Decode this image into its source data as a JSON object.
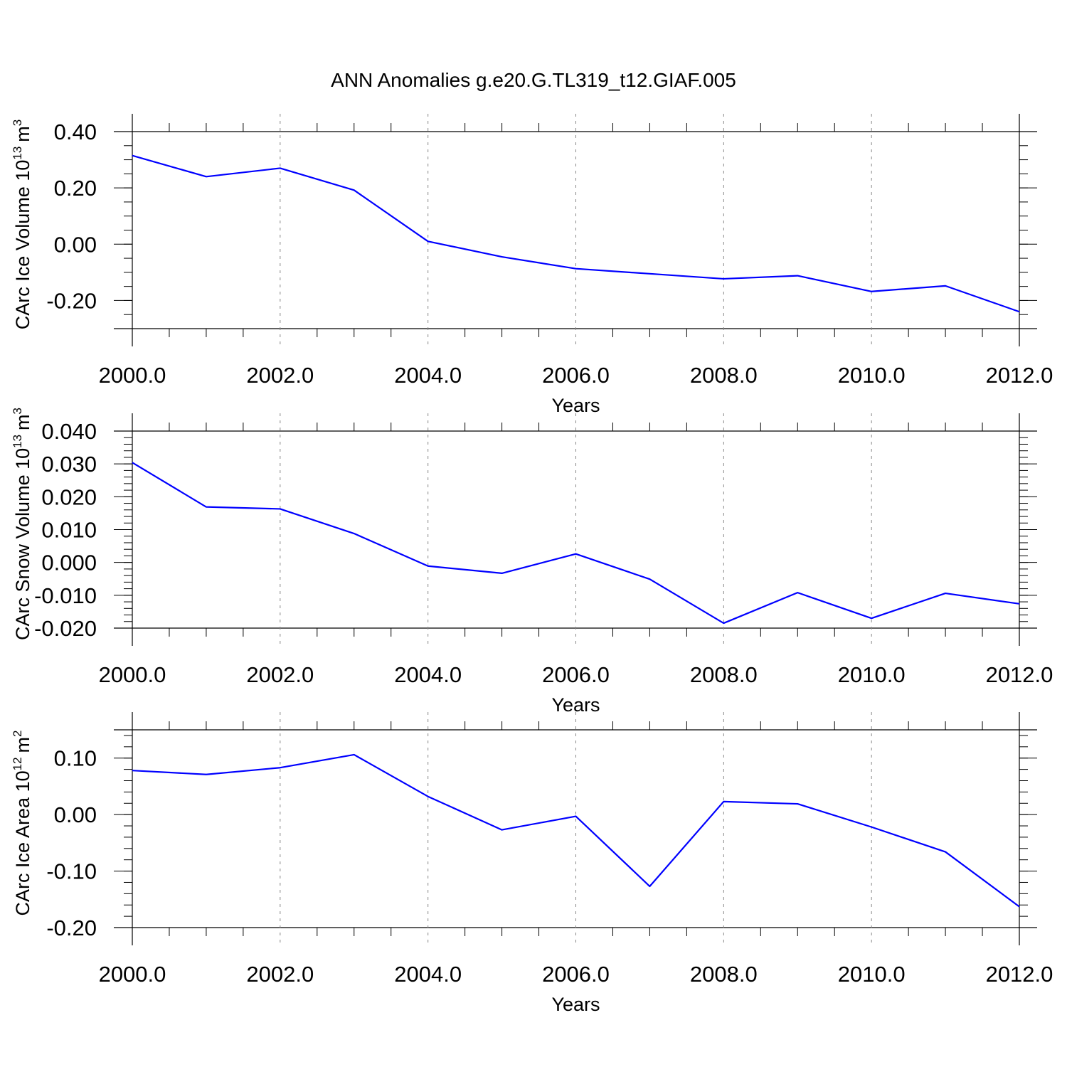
{
  "figure_title": "ANN Anomalies g.e20.G.TL319_t12.GIAF.005",
  "colors": {
    "line": "#0000ff",
    "axis": "#000000",
    "grid": "#888888",
    "background": "#ffffff"
  },
  "chart_data": [
    {
      "type": "line",
      "title": "ANN Anomalies g.e20.G.TL319_t12.GIAF.005",
      "xlabel": "Years",
      "ylabel": {
        "text": "CArc Ice Volume 10",
        "exponent": "13",
        "unit": "m",
        "unit_exponent": "3"
      },
      "x": [
        2000,
        2001,
        2002,
        2003,
        2004,
        2005,
        2006,
        2007,
        2008,
        2009,
        2010,
        2011,
        2012
      ],
      "xlim": [
        2000,
        2012
      ],
      "xticks": [
        2000,
        2002,
        2004,
        2006,
        2008,
        2010,
        2012
      ],
      "xtick_labels": [
        "2000.0",
        "2002.0",
        "2004.0",
        "2006.0",
        "2008.0",
        "2010.0",
        "2012.0"
      ],
      "ylim": [
        -0.3,
        0.4
      ],
      "yticks": [
        0.4,
        0.2,
        0.0,
        -0.2
      ],
      "ytick_labels": [
        "0.40",
        "0.20",
        "0.00",
        "-0.20"
      ],
      "yminor_step": 0.05,
      "grid": "dashed vertical at major x ticks",
      "series": [
        {
          "name": "CArc Ice Volume",
          "values": [
            0.315,
            0.24,
            0.27,
            0.192,
            0.01,
            -0.045,
            -0.087,
            -0.105,
            -0.123,
            -0.112,
            -0.168,
            -0.148,
            -0.24
          ]
        }
      ]
    },
    {
      "type": "line",
      "title": "",
      "xlabel": "Years",
      "ylabel": {
        "text": "CArc Snow Volume 10",
        "exponent": "13",
        "unit": "m",
        "unit_exponent": "3"
      },
      "x": [
        2000,
        2001,
        2002,
        2003,
        2004,
        2005,
        2006,
        2007,
        2008,
        2009,
        2010,
        2011,
        2012
      ],
      "xlim": [
        2000,
        2012
      ],
      "xticks": [
        2000,
        2002,
        2004,
        2006,
        2008,
        2010,
        2012
      ],
      "xtick_labels": [
        "2000.0",
        "2002.0",
        "2004.0",
        "2006.0",
        "2008.0",
        "2010.0",
        "2012.0"
      ],
      "ylim": [
        -0.02,
        0.04
      ],
      "yticks": [
        0.04,
        0.03,
        0.02,
        0.01,
        0.0,
        -0.01,
        -0.02
      ],
      "ytick_labels": [
        "0.040",
        "0.030",
        "0.020",
        "0.010",
        "0.000",
        "-0.010",
        "-0.020"
      ],
      "yminor_step": 0.002,
      "grid": "dashed vertical at major x ticks",
      "series": [
        {
          "name": "CArc Snow Volume",
          "values": [
            0.0304,
            0.0169,
            0.0163,
            0.0088,
            -0.0011,
            -0.0033,
            0.0026,
            -0.0051,
            -0.0185,
            -0.0092,
            -0.017,
            -0.0094,
            -0.0126
          ]
        }
      ]
    },
    {
      "type": "line",
      "title": "",
      "xlabel": "Years",
      "ylabel": {
        "text": "CArc Ice Area 10",
        "exponent": "12",
        "unit": "m",
        "unit_exponent": "2"
      },
      "x": [
        2000,
        2001,
        2002,
        2003,
        2004,
        2005,
        2006,
        2007,
        2008,
        2009,
        2010,
        2011,
        2012
      ],
      "xlim": [
        2000,
        2012
      ],
      "xticks": [
        2000,
        2002,
        2004,
        2006,
        2008,
        2010,
        2012
      ],
      "xtick_labels": [
        "2000.0",
        "2002.0",
        "2004.0",
        "2006.0",
        "2008.0",
        "2010.0",
        "2012.0"
      ],
      "ylim": [
        -0.2,
        0.15
      ],
      "yticks": [
        0.1,
        0.0,
        -0.1,
        -0.2
      ],
      "ytick_labels": [
        "0.10",
        "0.00",
        "-0.10",
        "-0.20"
      ],
      "yminor_step": 0.02,
      "grid": "dashed vertical at major x ticks",
      "series": [
        {
          "name": "CArc Ice Area",
          "values": [
            0.078,
            0.071,
            0.083,
            0.106,
            0.032,
            -0.027,
            -0.003,
            -0.127,
            0.023,
            0.019,
            -0.022,
            -0.066,
            -0.163
          ]
        }
      ]
    }
  ]
}
